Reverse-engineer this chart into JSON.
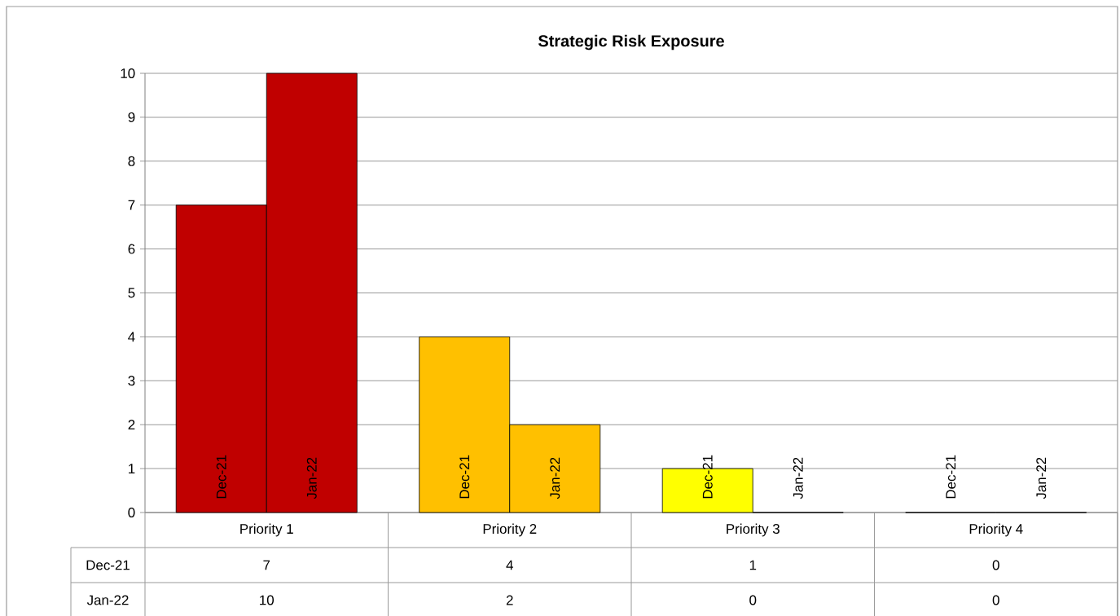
{
  "chart_data": {
    "type": "bar",
    "title": "Strategic Risk Exposure",
    "categories": [
      "Priority 1",
      "Priority 2",
      "Priority 3",
      "Priority 4"
    ],
    "series": [
      {
        "name": "Dec-21",
        "colors": [
          "#c00000",
          "#ffc000",
          "#ffff00",
          "#ffff00"
        ],
        "values": [
          7,
          4,
          1,
          0
        ]
      },
      {
        "name": "Jan-22",
        "colors": [
          "#c00000",
          "#ffc000",
          "#ffff00",
          "#ffff00"
        ],
        "values": [
          10,
          2,
          0,
          0
        ]
      }
    ],
    "ylim": [
      0,
      10
    ],
    "yticks": [
      0,
      1,
      2,
      3,
      4,
      5,
      6,
      7,
      8,
      9,
      10
    ],
    "grid": "y",
    "data_labels": true
  }
}
